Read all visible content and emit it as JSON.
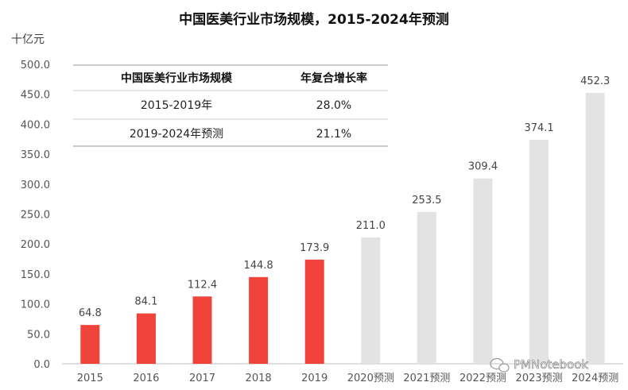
{
  "chart_data": {
    "type": "bar",
    "title": "中国医美行业市场规模，2015-2024年预测",
    "ylabel": "十亿元",
    "ylim": [
      0,
      500
    ],
    "yticks": [
      "0.0",
      "50.0",
      "100.0",
      "150.0",
      "200.0",
      "250.0",
      "300.0",
      "350.0",
      "400.0",
      "450.0",
      "500.0"
    ],
    "categories": [
      "2015",
      "2016",
      "2017",
      "2018",
      "2019",
      "2020预测",
      "2021预测",
      "2022预测",
      "2023预测",
      "2024预测"
    ],
    "values": [
      64.8,
      84.1,
      112.4,
      144.8,
      173.9,
      211.0,
      253.5,
      309.4,
      374.1,
      452.3
    ],
    "value_labels": [
      "64.8",
      "84.1",
      "112.4",
      "144.8",
      "173.9",
      "211.0",
      "253.5",
      "309.4",
      "374.1",
      "452.3"
    ],
    "colors": {
      "actual": "#f0433a",
      "forecast": "#e3e3e3"
    },
    "forecast_start_index": 5,
    "grid": false
  },
  "table": {
    "headers": [
      "中国医美行业市场规模",
      "年复合增长率"
    ],
    "rows": [
      [
        "2015-2019年",
        "28.0%"
      ],
      [
        "2019-2024年预测",
        "21.1%"
      ]
    ]
  },
  "watermark": "PMNotebook"
}
